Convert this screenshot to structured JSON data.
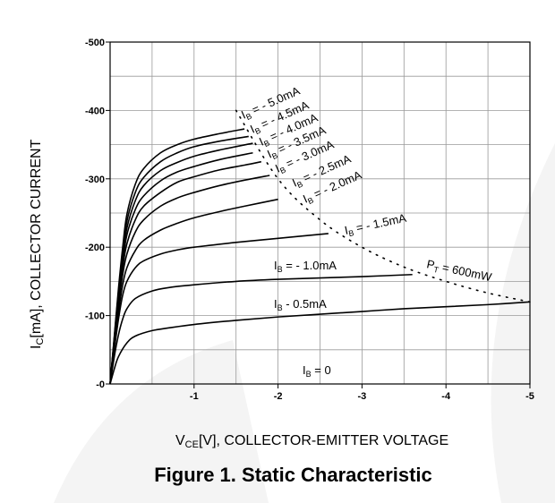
{
  "caption": "Figure 1. Static Characteristic",
  "colors": {
    "grid": "#9a9a9a",
    "curve": "#000000",
    "background_watermark": "#f3f3f3"
  },
  "chart_data": {
    "type": "line",
    "x_axis": {
      "label_main": "V",
      "label_sub": "CE",
      "label_rest": "[V], COLLECTOR-EMITTER VOLTAGE",
      "range": [
        0,
        -5
      ],
      "ticks": [
        -1,
        -2,
        -3,
        -4,
        -5
      ],
      "tick_labels": [
        "-1",
        "-2",
        "-3",
        "-4",
        "-5"
      ]
    },
    "y_axis": {
      "label_main": "I",
      "label_sub": "C",
      "label_rest": "[mA], COLLECTOR CURRENT",
      "range": [
        0,
        -500
      ],
      "ticks": [
        0,
        -100,
        -200,
        -300,
        -400,
        -500
      ],
      "tick_labels": [
        "-0",
        "-100",
        "-200",
        "-300",
        "-400",
        "-500"
      ]
    },
    "grid": true,
    "series": [
      {
        "name": "I_B = 0",
        "label_prefix": "I",
        "label_sub": "B",
        "label_rest": " = 0",
        "x": [],
        "y": []
      },
      {
        "name": "I_B = - 0.5mA",
        "label_prefix": "I",
        "label_sub": "B",
        "label_rest": " - 0.5mA",
        "x": [
          0,
          -0.05,
          -0.1,
          -0.2,
          -0.3,
          -0.5,
          -0.7,
          -1.0,
          -1.5,
          -2.0,
          -2.5,
          -3.0,
          -3.5,
          -4.0,
          -4.5,
          -5.0
        ],
        "y": [
          0,
          -22,
          -40,
          -60,
          -70,
          -78,
          -82,
          -87,
          -93,
          -98,
          -102,
          -106,
          -110,
          -113,
          -116,
          -120
        ]
      },
      {
        "name": "I_B = - 1.0mA",
        "label_prefix": "I",
        "label_sub": "B",
        "label_rest": " = - 1.0mA",
        "x": [
          0,
          -0.05,
          -0.1,
          -0.15,
          -0.2,
          -0.3,
          -0.5,
          -0.7,
          -1.0,
          -1.5,
          -2.0,
          -2.5,
          -3.0,
          -3.6
        ],
        "y": [
          0,
          -40,
          -72,
          -95,
          -110,
          -125,
          -136,
          -141,
          -145,
          -150,
          -153,
          -155,
          -157,
          -160
        ]
      },
      {
        "name": "I_B = - 1.5mA",
        "label_prefix": "I",
        "label_sub": "B",
        "label_rest": " = - 1.5mA",
        "x": [
          0,
          -0.05,
          -0.1,
          -0.15,
          -0.2,
          -0.3,
          -0.4,
          -0.6,
          -0.8,
          -1.0,
          -1.5,
          -2.0,
          -2.6
        ],
        "y": [
          0,
          -50,
          -95,
          -130,
          -150,
          -170,
          -180,
          -190,
          -196,
          -200,
          -207,
          -213,
          -220
        ]
      },
      {
        "name": "I_B = - 2.0mA",
        "label_prefix": "I",
        "label_sub": "B",
        "label_rest": " = - 2.0mA",
        "x": [
          0,
          -0.05,
          -0.1,
          -0.15,
          -0.2,
          -0.3,
          -0.4,
          -0.6,
          -0.8,
          -1.0,
          -1.3,
          -1.6,
          -2.0
        ],
        "y": [
          0,
          -55,
          -105,
          -145,
          -170,
          -195,
          -210,
          -225,
          -235,
          -243,
          -252,
          -260,
          -270
        ]
      },
      {
        "name": "I_B = - 2.5mA",
        "label_prefix": "I",
        "label_sub": "B",
        "label_rest": " = - 2.5mA",
        "x": [
          0,
          -0.05,
          -0.1,
          -0.15,
          -0.2,
          -0.3,
          -0.4,
          -0.6,
          -0.8,
          -1.0,
          -1.3,
          -1.6,
          -1.9
        ],
        "y": [
          0,
          -60,
          -115,
          -160,
          -190,
          -222,
          -240,
          -260,
          -272,
          -280,
          -290,
          -298,
          -305
        ]
      },
      {
        "name": "I_B = - 3.0mA",
        "label_prefix": "I",
        "label_sub": "B",
        "label_rest": " = - 3.0mA",
        "x": [
          0,
          -0.05,
          -0.1,
          -0.15,
          -0.2,
          -0.3,
          -0.4,
          -0.6,
          -0.8,
          -1.0,
          -1.3,
          -1.6,
          -1.8
        ],
        "y": [
          0,
          -62,
          -120,
          -170,
          -205,
          -240,
          -260,
          -280,
          -295,
          -303,
          -313,
          -320,
          -325
        ]
      },
      {
        "name": "I_B = - 3.5mA",
        "label_prefix": "I",
        "label_sub": "B",
        "label_rest": " = - 3.5mA",
        "x": [
          0,
          -0.05,
          -0.1,
          -0.15,
          -0.2,
          -0.3,
          -0.4,
          -0.6,
          -0.8,
          -1.0,
          -1.3,
          -1.7
        ],
        "y": [
          0,
          -64,
          -125,
          -178,
          -218,
          -255,
          -275,
          -297,
          -310,
          -318,
          -328,
          -338
        ]
      },
      {
        "name": "I_B = - 4.0mA",
        "label_prefix": "I",
        "label_sub": "B",
        "label_rest": " = - 4.0mA",
        "x": [
          0,
          -0.05,
          -0.1,
          -0.15,
          -0.2,
          -0.3,
          -0.4,
          -0.6,
          -0.8,
          -1.0,
          -1.3,
          -1.7
        ],
        "y": [
          0,
          -66,
          -130,
          -185,
          -228,
          -268,
          -290,
          -312,
          -324,
          -333,
          -342,
          -352
        ]
      },
      {
        "name": "I_B = - 4.5mA",
        "label_prefix": "I",
        "label_sub": "B",
        "label_rest": " = - 4.5mA",
        "x": [
          0,
          -0.05,
          -0.1,
          -0.15,
          -0.2,
          -0.3,
          -0.4,
          -0.6,
          -0.8,
          -1.0,
          -1.3,
          -1.65
        ],
        "y": [
          0,
          -68,
          -135,
          -192,
          -238,
          -280,
          -302,
          -325,
          -338,
          -347,
          -355,
          -362
        ]
      },
      {
        "name": "I_B = - 5.0mA",
        "label_prefix": "I",
        "label_sub": "B",
        "label_rest": " = - 5.0mA",
        "x": [
          0,
          -0.05,
          -0.1,
          -0.15,
          -0.2,
          -0.3,
          -0.4,
          -0.6,
          -0.8,
          -1.0,
          -1.3,
          -1.6
        ],
        "y": [
          0,
          -70,
          -140,
          -200,
          -248,
          -292,
          -315,
          -338,
          -350,
          -358,
          -366,
          -373
        ]
      }
    ],
    "power_limit": {
      "name": "P_T = 600mW",
      "label_prefix": "P",
      "label_sub": "T",
      "label_rest": " = 600mW",
      "x": [
        -1.5,
        -2.0,
        -2.5,
        -3.0,
        -3.5,
        -4.0,
        -4.5,
        -5.0
      ],
      "y": [
        -400,
        -300,
        -240,
        -200,
        -171,
        -150,
        -133,
        -120
      ]
    }
  }
}
